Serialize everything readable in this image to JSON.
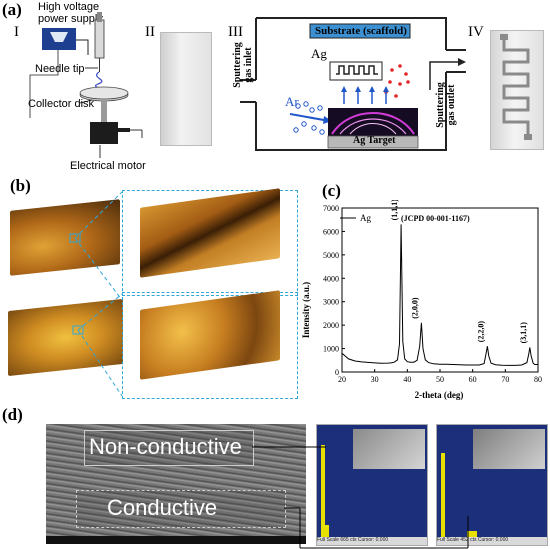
{
  "panels": {
    "a": "(a)",
    "b": "(b)",
    "c": "(c)",
    "d": "(d)"
  },
  "panel_a": {
    "roman": [
      "I",
      "II",
      "III",
      "IV"
    ],
    "electrospinning": {
      "hv_label_line1": "High voltage",
      "hv_label_line2": "power supply",
      "needle_tip": "Needle tip",
      "collector_disk": "Collector disk",
      "electrical_motor": "Electrical motor"
    },
    "sputtering": {
      "substrate": "Substrate (scaffold)",
      "inlet_line1": "Sputtering",
      "inlet_line2": "gas inlet",
      "outlet_line1": "Sputtering",
      "outlet_line2": "gas outlet",
      "ag_small": "Ag",
      "ar": "Ar",
      "ag_target": "Ag Target"
    },
    "colors": {
      "substrate_fill": "#3c8fd0",
      "target_fill": "#b8b8b8",
      "plasma": "#d13bd6",
      "blue_arrow": "#1f56c9",
      "red_dot": "#e2262b"
    }
  },
  "panel_d": {
    "non_conductive": "Non-conductive",
    "conductive": "Conductive",
    "eds_left_footer": "Full Scale 665 cts Cursor: 0.000",
    "eds_right_footer": "Full Scale 452 cts Cursor: 0.000"
  },
  "chart_data": {
    "type": "line",
    "title": "",
    "xlabel": "2-theta (deg)",
    "ylabel": "Intensity (a.u.)",
    "xlim": [
      20,
      80
    ],
    "ylim": [
      0,
      7000
    ],
    "xticks": [
      20,
      30,
      40,
      50,
      60,
      70,
      80
    ],
    "yticks": [
      0,
      1000,
      2000,
      3000,
      4000,
      5000,
      6000,
      7000
    ],
    "grid": false,
    "legend": {
      "position": "top-left",
      "entries": [
        "Ag"
      ]
    },
    "reference": "(JCPD 00-001-1167)",
    "series": [
      {
        "name": "Ag",
        "color": "#000000",
        "x": [
          20,
          22,
          24,
          26,
          28,
          30,
          32,
          34,
          35,
          36,
          37,
          37.6,
          38.1,
          38.6,
          39.2,
          40,
          41,
          42,
          43,
          43.8,
          44.3,
          44.8,
          45.5,
          46.5,
          48,
          50,
          52,
          54,
          56,
          58,
          60,
          62,
          63.5,
          64.1,
          64.5,
          64.9,
          65.6,
          67,
          69,
          71,
          73,
          75,
          76.6,
          77.2,
          77.5,
          77.9,
          78.5,
          79,
          80
        ],
        "y": [
          800,
          560,
          470,
          430,
          410,
          390,
          370,
          380,
          390,
          420,
          520,
          1200,
          6300,
          1300,
          560,
          440,
          420,
          420,
          500,
          1100,
          2100,
          1000,
          520,
          400,
          350,
          330,
          330,
          320,
          310,
          300,
          300,
          300,
          360,
          800,
          1100,
          700,
          380,
          310,
          290,
          280,
          280,
          300,
          400,
          800,
          1050,
          700,
          380,
          320,
          320
        ]
      }
    ],
    "annotations": [
      {
        "text": "(1,1,1)",
        "x": 38.1,
        "y": 6300
      },
      {
        "text": "(2,0,0)",
        "x": 44.3,
        "y": 2100
      },
      {
        "text": "(2,2,0)",
        "x": 64.5,
        "y": 1100
      },
      {
        "text": "(3,1,1)",
        "x": 77.5,
        "y": 1050
      }
    ]
  }
}
